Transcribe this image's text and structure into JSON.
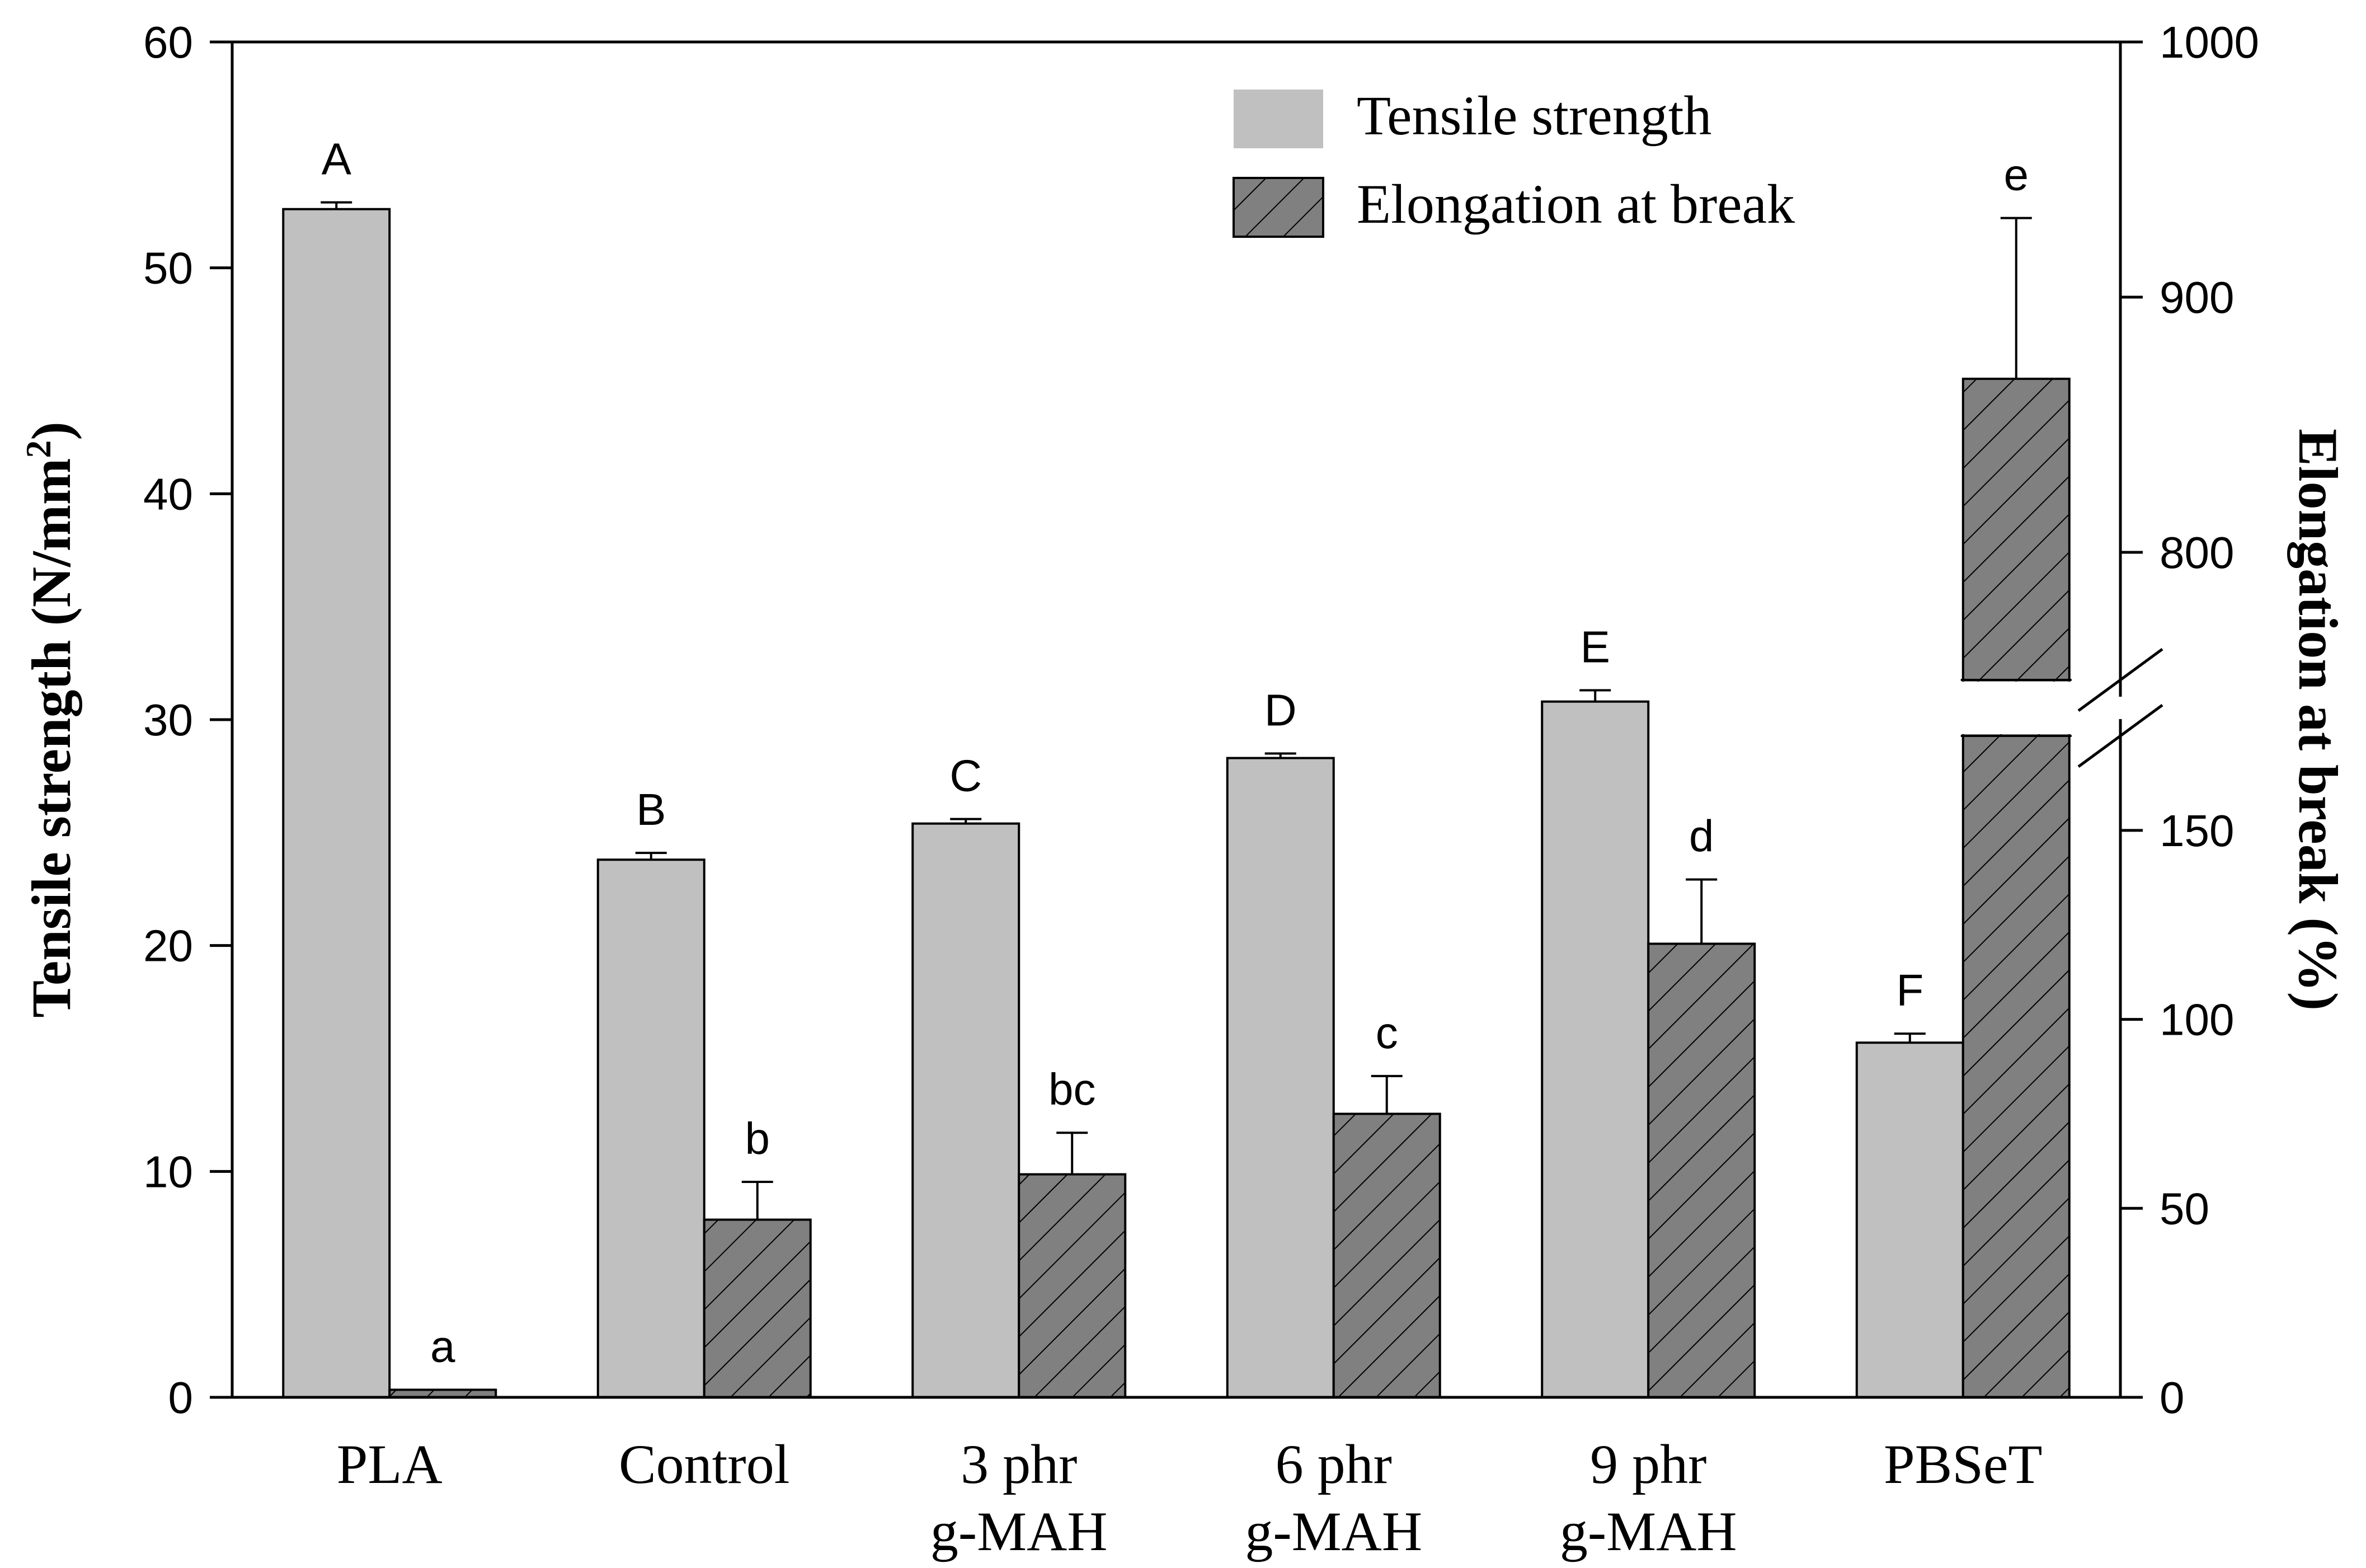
{
  "chart_data": {
    "type": "bar",
    "categories": [
      [
        "PLA"
      ],
      [
        "Control"
      ],
      [
        "3 phr",
        "g-MAH"
      ],
      [
        "6 phr",
        "g-MAH"
      ],
      [
        "9 phr",
        "g-MAH"
      ],
      [
        "PBSeT"
      ]
    ],
    "series": [
      {
        "name": "Tensile strength",
        "axis": "left",
        "values": [
          52.6,
          23.8,
          25.4,
          28.3,
          30.8,
          15.7
        ],
        "errors": [
          0.3,
          0.3,
          0.2,
          0.2,
          0.5,
          0.4
        ],
        "letters": [
          "A",
          "B",
          "C",
          "D",
          "E",
          "F"
        ],
        "color": "#c0c0c0"
      },
      {
        "name": "Elongation at break",
        "axis": "right",
        "values": [
          2,
          47,
          59,
          75,
          120,
          868
        ],
        "errors": [
          0,
          10,
          11,
          10,
          17,
          63
        ],
        "letters": [
          "a",
          "b",
          "bc",
          "c",
          "d",
          "e"
        ],
        "color": "#808080"
      }
    ],
    "ylabel_left": "Tensile strength (N/mm",
    "ylabel_left_sup": "2",
    "ylabel_left_close": ")",
    "ylabel_right": "Elongation at break (%)",
    "yleft": {
      "min": 0,
      "max": 60,
      "ticks": [
        "0",
        "10",
        "20",
        "30",
        "40",
        "50",
        "60"
      ]
    },
    "yright": {
      "lower": {
        "min": 0,
        "max": 175,
        "ticks": [
          "0",
          "50",
          "100",
          "150"
        ]
      },
      "upper": {
        "min": 750,
        "max": 1000,
        "ticks": [
          "800",
          "900",
          "1000"
        ]
      },
      "break": "axis break between 175 and 750"
    },
    "legend_position": "top-right"
  }
}
